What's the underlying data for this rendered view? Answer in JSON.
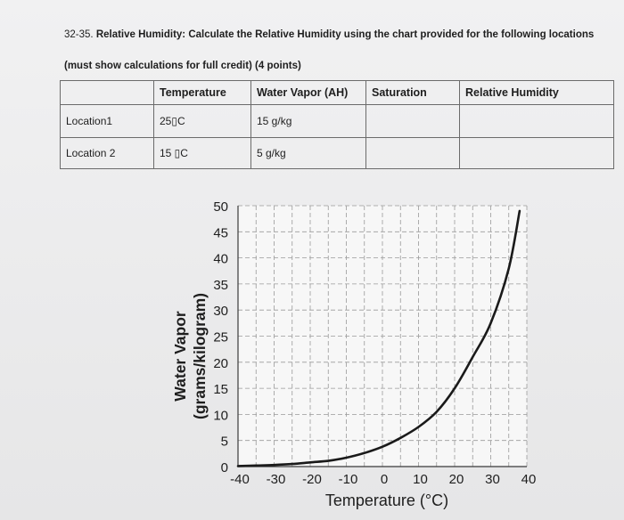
{
  "question": {
    "number": "32-35.",
    "line1_bold": "Relative Humidity: Calculate the Relative Humidity using the chart provided for the following locations",
    "line2": "(must show calculations for full credit) (4 points)"
  },
  "table": {
    "headers": [
      "",
      "Temperature",
      "Water Vapor (AH)",
      "Saturation",
      "Relative Humidity"
    ],
    "rows": [
      [
        "Location1",
        "25▯C",
        "15 g/kg",
        "",
        ""
      ],
      [
        "Location 2",
        "15 ▯C",
        "5 g/kg",
        "",
        ""
      ]
    ]
  },
  "chart_data": {
    "type": "line",
    "xlabel": "Temperature (°C)",
    "ylabel_line1": "Water Vapor",
    "ylabel_line2": "(grams/kilogram)",
    "xlim": [
      -40,
      40
    ],
    "ylim": [
      0,
      50
    ],
    "x_ticks": [
      -40,
      -30,
      -20,
      -10,
      0,
      10,
      20,
      30,
      40
    ],
    "y_ticks": [
      0,
      5,
      10,
      15,
      20,
      25,
      30,
      35,
      40,
      45,
      50
    ],
    "grid": true,
    "series": [
      {
        "x": [
          -40,
          -35,
          -30,
          -25,
          -20,
          -15,
          -10,
          -5,
          0,
          5,
          10,
          15,
          20,
          25,
          30,
          35,
          38
        ],
        "values": [
          0.1,
          0.2,
          0.3,
          0.5,
          0.8,
          1.1,
          1.7,
          2.6,
          3.8,
          5.5,
          7.6,
          10.5,
          15,
          21,
          27.5,
          38,
          49
        ]
      }
    ],
    "colors": {
      "line": "#1a1a1a",
      "grid": "#9a9a9a",
      "plot_bg": "#f7f7f7"
    }
  }
}
